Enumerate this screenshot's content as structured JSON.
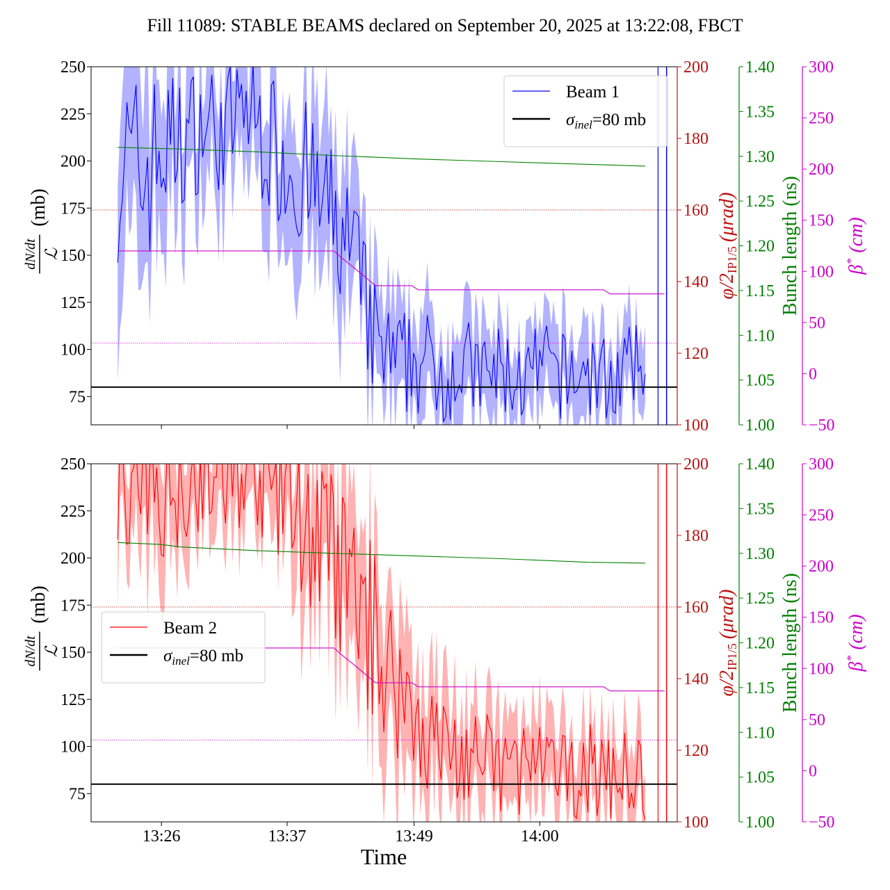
{
  "figure": {
    "title": "Fill 11089: STABLE BEAMS declared on September 20, 2025 at 13:22:08, FBCT",
    "xlabel": "Time",
    "x_ticks": [
      "13:26",
      "13:37",
      "13:49",
      "14:00"
    ]
  },
  "axes_labels": {
    "left_numerator": "dN/dt",
    "left_denominator": "ℒ",
    "left_unit": "(mb)",
    "crossing_angle": "φ/2",
    "crossing_angle_sub": "IP1/5",
    "crossing_angle_unit": "(μrad)",
    "bunch_length": "Bunch length (ns)",
    "beta_star": "β",
    "beta_star_sup": "*",
    "beta_star_unit": "(cm)"
  },
  "colors": {
    "beam1": "#0000ff",
    "beam1_band": "#aaaaff",
    "beam2": "#ff0000",
    "beam2_band": "#ffaaaa",
    "reference": "#000000",
    "crossing_angle": "#bb1111",
    "bunch_length": "#008000",
    "beta_star": "#cc00cc"
  },
  "chart_data": [
    {
      "type": "line",
      "panel": "top",
      "x_unit": "minutes after 13:00",
      "ylim": [
        60,
        250
      ],
      "yticks": [
        75,
        100,
        125,
        150,
        175,
        200,
        225,
        250
      ],
      "xlim": [
        19.5,
        74.5
      ],
      "xticks": [
        26.1,
        37.9,
        49.8,
        61.6
      ],
      "legend": {
        "placement": "upper right",
        "entries": [
          "Beam 1",
          "σinel=80 mb"
        ]
      },
      "series": [
        {
          "name": "Beam 1",
          "axis": "left",
          "color": "#0000ff",
          "x": [
            22,
            24,
            26,
            28,
            30,
            32,
            34,
            36,
            38,
            40,
            42,
            44,
            46,
            48,
            50,
            52,
            54,
            56,
            58,
            60,
            62,
            64,
            66,
            68,
            70,
            71.5
          ],
          "y": [
            200,
            190,
            205,
            210,
            220,
            215,
            230,
            210,
            200,
            185,
            170,
            150,
            105,
            90,
            95,
            88,
            92,
            85,
            88,
            82,
            90,
            85,
            88,
            84,
            88,
            90
          ],
          "band_low": [
            130,
            120,
            150,
            165,
            175,
            170,
            185,
            165,
            160,
            140,
            130,
            105,
            65,
            60,
            60,
            60,
            60,
            60,
            60,
            60,
            60,
            60,
            60,
            60,
            60,
            60
          ],
          "band_high": [
            250,
            250,
            250,
            250,
            250,
            250,
            250,
            250,
            250,
            240,
            215,
            200,
            140,
            125,
            130,
            120,
            125,
            115,
            120,
            110,
            118,
            112,
            116,
            110,
            115,
            112
          ]
        },
        {
          "name": "σinel=80 mb",
          "axis": "left",
          "color": "#000000",
          "y_const": 80
        }
      ],
      "crossing_angle_urad": {
        "axis_range": [
          100,
          200
        ],
        "x": [
          22,
          71.5
        ],
        "y": [
          160,
          160
        ],
        "style": "dotted"
      },
      "bunch_length_ns": {
        "axis_range": [
          1.0,
          1.4
        ],
        "x": [
          22,
          28,
          35,
          42,
          50,
          58,
          66,
          71.5
        ],
        "y": [
          1.31,
          1.308,
          1.305,
          1.301,
          1.297,
          1.294,
          1.291,
          1.289
        ]
      },
      "beta_star_cm": {
        "axis_range": [
          -50,
          300
        ],
        "x": [
          22,
          42.3,
          42.8,
          44,
          45.5,
          46.2,
          46.8,
          49.6,
          50.2,
          67.6,
          68.2,
          73.3
        ],
        "y": [
          120,
          120,
          115,
          105,
          92,
          86,
          86,
          86,
          82,
          82,
          78,
          78
        ]
      },
      "beta_star_reference_cm": 30
    },
    {
      "type": "line",
      "panel": "bottom",
      "x_unit": "minutes after 13:00",
      "ylim": [
        60,
        250
      ],
      "yticks": [
        75,
        100,
        125,
        150,
        175,
        200,
        225,
        250
      ],
      "xlim": [
        19.5,
        74.5
      ],
      "xticks": [
        26.1,
        37.9,
        49.8,
        61.6
      ],
      "legend": {
        "placement": "center left",
        "entries": [
          "Beam 2",
          "σinel=80 mb"
        ]
      },
      "series": [
        {
          "name": "Beam 2",
          "axis": "left",
          "color": "#ff0000",
          "x": [
            22,
            24,
            26,
            28,
            30,
            32,
            34,
            36,
            38,
            40,
            42,
            44,
            46,
            48,
            50,
            52,
            54,
            56,
            58,
            60,
            62,
            64,
            66,
            68,
            70,
            71.5
          ],
          "y": [
            240,
            230,
            235,
            240,
            245,
            240,
            245,
            240,
            230,
            215,
            200,
            180,
            160,
            135,
            115,
            100,
            95,
            92,
            88,
            90,
            86,
            84,
            88,
            84,
            86,
            82
          ],
          "band_low": [
            180,
            165,
            170,
            175,
            185,
            180,
            190,
            180,
            170,
            150,
            140,
            125,
            105,
            90,
            75,
            65,
            60,
            60,
            60,
            60,
            60,
            60,
            60,
            60,
            60,
            60
          ],
          "band_high": [
            250,
            250,
            250,
            250,
            250,
            250,
            250,
            250,
            250,
            250,
            250,
            235,
            210,
            180,
            155,
            135,
            128,
            122,
            118,
            120,
            115,
            112,
            116,
            112,
            110,
            108
          ]
        },
        {
          "name": "σinel=80 mb",
          "axis": "left",
          "color": "#000000",
          "y_const": 80
        }
      ],
      "crossing_angle_urad": {
        "axis_range": [
          100,
          200
        ],
        "x": [
          22,
          71.5
        ],
        "y": [
          160,
          160
        ],
        "style": "dotted"
      },
      "bunch_length_ns": {
        "axis_range": [
          1.0,
          1.4
        ],
        "x": [
          22,
          26,
          28,
          35,
          42,
          50,
          58,
          66,
          71.5
        ],
        "y": [
          1.312,
          1.31,
          1.307,
          1.303,
          1.3,
          1.297,
          1.294,
          1.29,
          1.289
        ]
      },
      "beta_star_cm": {
        "axis_range": [
          -50,
          300
        ],
        "x": [
          22,
          42.3,
          42.8,
          44,
          45.5,
          46.2,
          46.8,
          49.6,
          50.2,
          67.6,
          68.2,
          73.3
        ],
        "y": [
          120,
          120,
          115,
          105,
          92,
          86,
          86,
          86,
          82,
          82,
          78,
          78
        ]
      },
      "beta_star_reference_cm": 30
    }
  ]
}
